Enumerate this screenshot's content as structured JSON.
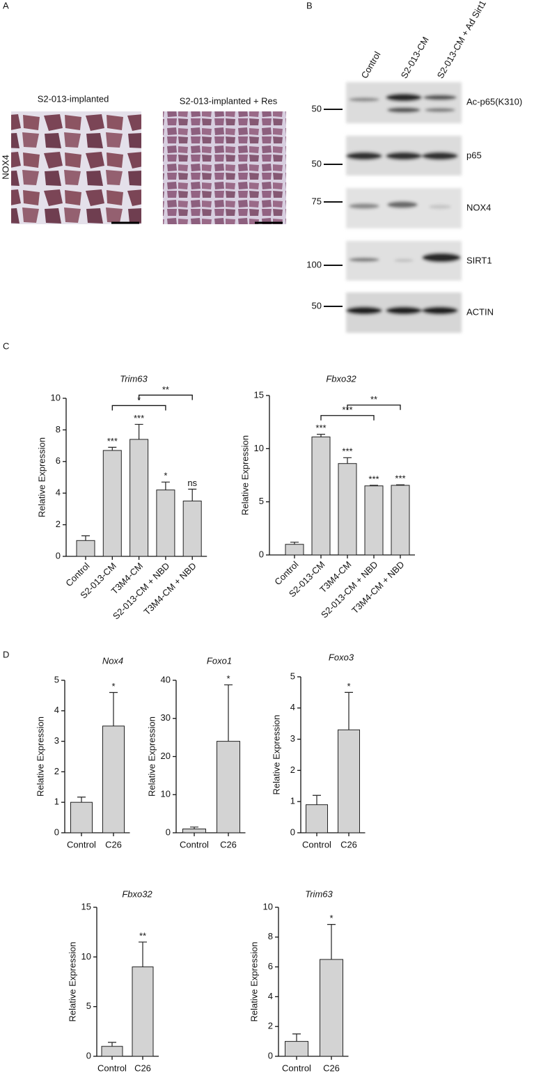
{
  "panel_labels": [
    "A",
    "B",
    "C",
    "D"
  ],
  "histology": {
    "titles": [
      "S2-013-implanted",
      "S2-013-implanted + Res"
    ],
    "row_label": "NOX4"
  },
  "western_blot": {
    "lanes": [
      "Control",
      "S2-013-CM",
      "S2-013-CM + Ad Sirt1"
    ],
    "blots": [
      {
        "label": "Ac-p65(K310)",
        "marker": 50
      },
      {
        "label": "p65",
        "marker": 50
      },
      {
        "label": "NOX4",
        "marker": 75
      },
      {
        "label": "SIRT1",
        "marker": 100
      },
      {
        "label": "ACTIN",
        "marker": 50
      }
    ]
  },
  "chart_data": [
    {
      "type": "bar",
      "title": "Trim63",
      "y_label": "Relative Expression",
      "color": "#d3d3d3",
      "categories": [
        "Control",
        "S2-013-CM",
        "T3M4-CM",
        "S2-013-CM + NBD",
        "T3M4-CM + NBD"
      ],
      "values": [
        1.0,
        6.7,
        7.4,
        4.2,
        3.5
      ],
      "errors": [
        0.3,
        0.2,
        0.95,
        0.5,
        0.75
      ],
      "annotations": [
        null,
        "***",
        "***",
        "*",
        "ns"
      ],
      "brackets": [
        {
          "from": "S2-013-CM",
          "to": "S2-013-CM + NBD",
          "label": "*"
        },
        {
          "from": "T3M4-CM",
          "to": "T3M4-CM + NBD",
          "label": "**"
        }
      ],
      "ylim": [
        0,
        10
      ],
      "yticks": [
        0,
        2,
        4,
        6,
        8,
        10
      ]
    },
    {
      "type": "bar",
      "title": "Fbxo32",
      "y_label": "Relative Expression",
      "color": "#d3d3d3",
      "categories": [
        "Control",
        "S2-013-CM",
        "T3M4-CM",
        "S2-013-CM + NBD",
        "T3M4-CM + NBD"
      ],
      "values": [
        1.0,
        11.1,
        8.6,
        6.5,
        6.55
      ],
      "errors": [
        0.2,
        0.25,
        0.55,
        0.05,
        0.05
      ],
      "annotations": [
        null,
        "***",
        "***",
        "***",
        "***"
      ],
      "brackets": [
        {
          "from": "S2-013-CM",
          "to": "S2-013-CM + NBD",
          "label": "***"
        },
        {
          "from": "T3M4-CM",
          "to": "T3M4-CM + NBD",
          "label": "**"
        }
      ],
      "ylim": [
        0,
        15
      ],
      "yticks": [
        0,
        5,
        10,
        15
      ]
    },
    {
      "type": "bar",
      "title": "Nox4",
      "y_label": "Relative Expression",
      "color": "#d3d3d3",
      "categories": [
        "Control",
        "C26"
      ],
      "values": [
        1.0,
        3.5
      ],
      "errors": [
        0.17,
        1.1
      ],
      "annotations": [
        null,
        "*"
      ],
      "ylim": [
        0,
        5
      ],
      "yticks": [
        0,
        1,
        2,
        3,
        4,
        5
      ]
    },
    {
      "type": "bar",
      "title": "Foxo1",
      "y_label": "Relative Expression",
      "color": "#d3d3d3",
      "categories": [
        "Control",
        "C26"
      ],
      "values": [
        1.0,
        24
      ],
      "errors": [
        0.5,
        14.8
      ],
      "annotations": [
        null,
        "*"
      ],
      "ylim": [
        0,
        40
      ],
      "yticks": [
        0,
        10,
        20,
        30,
        40
      ]
    },
    {
      "type": "bar",
      "title": "Foxo3",
      "y_label": "Relative Expression",
      "color": "#d3d3d3",
      "categories": [
        "Control",
        "C26"
      ],
      "values": [
        0.9,
        3.3
      ],
      "errors": [
        0.3,
        1.2
      ],
      "annotations": [
        null,
        "*"
      ],
      "ylim": [
        0,
        5
      ],
      "yticks": [
        0,
        1,
        2,
        3,
        4,
        5
      ]
    },
    {
      "type": "bar",
      "title": "Fbxo32",
      "y_label": "Relative Expression",
      "color": "#d3d3d3",
      "categories": [
        "Control",
        "C26"
      ],
      "values": [
        1.0,
        9.0
      ],
      "errors": [
        0.4,
        2.5
      ],
      "annotations": [
        null,
        "**"
      ],
      "ylim": [
        0,
        15
      ],
      "yticks": [
        0,
        5,
        10,
        15
      ]
    },
    {
      "type": "bar",
      "title": "Trim63",
      "y_label": "Relative Expression",
      "color": "#d3d3d3",
      "categories": [
        "Control",
        "C26"
      ],
      "values": [
        1.0,
        6.5
      ],
      "errors": [
        0.5,
        2.35
      ],
      "annotations": [
        null,
        "*"
      ],
      "ylim": [
        0,
        10
      ],
      "yticks": [
        0,
        2,
        4,
        6,
        8,
        10
      ]
    }
  ]
}
